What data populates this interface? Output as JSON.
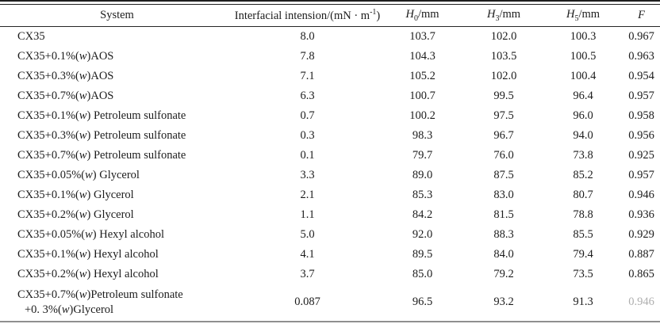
{
  "table": {
    "header": {
      "system": "System",
      "tension": {
        "text": "Interfacial intension/(mN · m",
        "sup": "-1",
        "close": ")"
      },
      "h0": {
        "base": "H",
        "sub": "0",
        "unit": "/mm"
      },
      "h3": {
        "base": "H",
        "sub": "3",
        "unit": "/mm"
      },
      "h5": {
        "base": "H",
        "sub": "5",
        "unit": "/mm"
      },
      "f": "F"
    },
    "rows": [
      {
        "system": "CX35",
        "tension": "8.0",
        "h0": "103.7",
        "h3": "102.0",
        "h5": "100.3",
        "f": "0.967"
      },
      {
        "system": "CX35+0.1%(w)AOS",
        "tension": "7.8",
        "h0": "104.3",
        "h3": "103.5",
        "h5": "100.5",
        "f": "0.963"
      },
      {
        "system": "CX35+0.3%(w)AOS",
        "tension": "7.1",
        "h0": "105.2",
        "h3": "102.0",
        "h5": "100.4",
        "f": "0.954"
      },
      {
        "system": "CX35+0.7%(w)AOS",
        "tension": "6.3",
        "h0": "100.7",
        "h3": "99.5",
        "h5": "96.4",
        "f": "0.957"
      },
      {
        "system": "CX35+0.1%(w) Petroleum sulfonate",
        "tension": "0.7",
        "h0": "100.2",
        "h3": "97.5",
        "h5": "96.0",
        "f": "0.958"
      },
      {
        "system": "CX35+0.3%(w) Petroleum sulfonate",
        "tension": "0.3",
        "h0": "98.3",
        "h3": "96.7",
        "h5": "94.0",
        "f": "0.956"
      },
      {
        "system": "CX35+0.7%(w) Petroleum sulfonate",
        "tension": "0.1",
        "h0": "79.7",
        "h3": "76.0",
        "h5": "73.8",
        "f": "0.925"
      },
      {
        "system": "CX35+0.05%(w) Glycerol",
        "tension": "3.3",
        "h0": "89.0",
        "h3": "87.5",
        "h5": "85.2",
        "f": "0.957"
      },
      {
        "system": "CX35+0.1%(w) Glycerol",
        "tension": "2.1",
        "h0": "85.3",
        "h3": "83.0",
        "h5": "80.7",
        "f": "0.946"
      },
      {
        "system": "CX35+0.2%(w) Glycerol",
        "tension": "1.1",
        "h0": "84.2",
        "h3": "81.5",
        "h5": "78.8",
        "f": "0.936"
      },
      {
        "system": "CX35+0.05%(w) Hexyl alcohol",
        "tension": "5.0",
        "h0": "92.0",
        "h3": "88.3",
        "h5": "85.5",
        "f": "0.929"
      },
      {
        "system": "CX35+0.1%(w) Hexyl alcohol",
        "tension": "4.1",
        "h0": "89.5",
        "h3": "84.0",
        "h5": "79.4",
        "f": "0.887"
      },
      {
        "system": "CX35+0.2%(w) Hexyl alcohol",
        "tension": "3.7",
        "h0": "85.0",
        "h3": "79.2",
        "h5": "73.5",
        "f": "0.865"
      },
      {
        "system": "CX35+0.7%(w)Petroleum sulfonate",
        "system2": "+0. 3%(w)Glycerol",
        "tension": "0.087",
        "h0": "96.5",
        "h3": "93.2",
        "h5": "91.3",
        "f": "0.946",
        "faded": true
      }
    ]
  }
}
